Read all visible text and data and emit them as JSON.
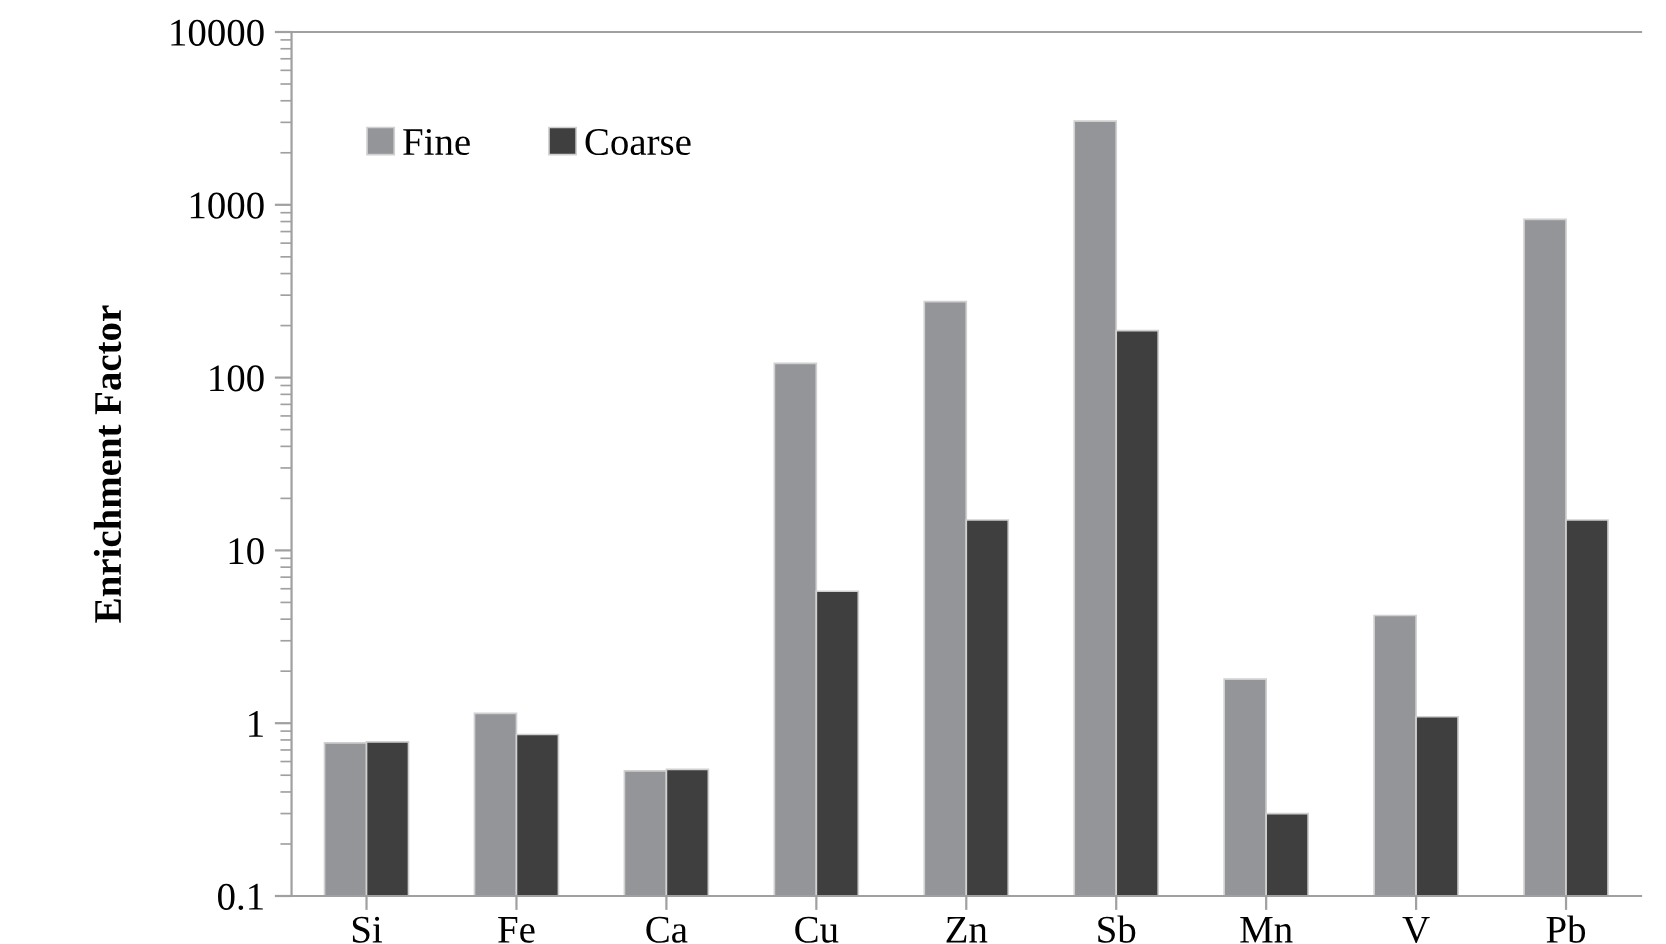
{
  "chart_data": {
    "type": "bar",
    "ylabel": "Enrichment Factor",
    "categories": [
      "Si",
      "Fe",
      "Ca",
      "Cu",
      "Zn",
      "Sb",
      "Mn",
      "V",
      "Pb"
    ],
    "series": [
      {
        "name": "Fine",
        "color": "#949598",
        "values": [
          0.77,
          1.14,
          0.53,
          121,
          275,
          3050,
          1.8,
          4.2,
          824
        ]
      },
      {
        "name": "Coarse",
        "color": "#3f3f3f",
        "values": [
          0.78,
          0.86,
          0.54,
          5.8,
          15,
          187,
          0.3,
          1.09,
          15
        ]
      }
    ],
    "log": "y",
    "ylim": [
      0.1,
      10000
    ],
    "yticks": [
      0.1,
      1,
      10,
      100,
      1000,
      10000
    ],
    "grid": false,
    "legend": "top left"
  }
}
